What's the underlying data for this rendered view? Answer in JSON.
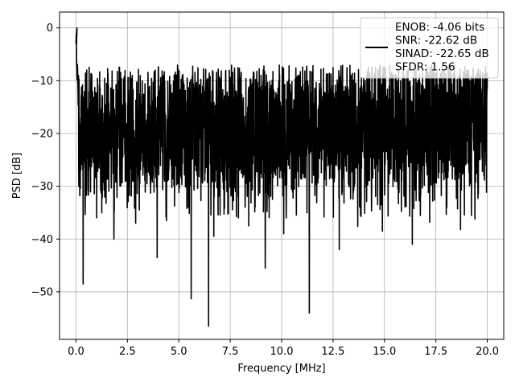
{
  "chart_data": {
    "type": "line",
    "xlabel": "Frequency [MHz]",
    "ylabel": "PSD [dB]",
    "xlim": [
      -0.8,
      20.8
    ],
    "ylim": [
      -59,
      3
    ],
    "x_ticks": [
      0.0,
      2.5,
      5.0,
      7.5,
      10.0,
      12.5,
      15.0,
      17.5,
      20.0
    ],
    "x_tick_labels": [
      "0.0",
      "2.5",
      "5.0",
      "7.5",
      "10.0",
      "12.5",
      "15.0",
      "17.5",
      "20.0"
    ],
    "y_ticks": [
      0,
      -10,
      -20,
      -30,
      -40,
      -50
    ],
    "y_tick_labels": [
      "0",
      "−10",
      "−20",
      "−30",
      "−40",
      "−50"
    ],
    "grid": true,
    "legend_position": "top-right",
    "legend_lines": [
      "ENOB: -4.06 bits",
      "SNR: -22.62 dB",
      "SINAD: -22.65 dB",
      "SFDR: 1.56"
    ],
    "series": [
      {
        "color": "#000000",
        "x_start": 0.0,
        "x_end": 20.0,
        "peak": {
          "x": 0.05,
          "y": 0.0
        },
        "noise_band": {
          "typical_low": -30,
          "typical_high": -10,
          "upper_extreme": -7
        },
        "deep_dips": [
          {
            "x": 0.35,
            "y": -48.5
          },
          {
            "x": 3.95,
            "y": -43.5
          },
          {
            "x": 5.6,
            "y": -51.3
          },
          {
            "x": 6.45,
            "y": -56.5
          },
          {
            "x": 9.2,
            "y": -45.5
          },
          {
            "x": 11.35,
            "y": -54.0
          },
          {
            "x": 12.8,
            "y": -42.0
          },
          {
            "x": 16.35,
            "y": -41.0
          },
          {
            "x": 1.85,
            "y": -40.0
          },
          {
            "x": 6.7,
            "y": -39.5
          },
          {
            "x": 10.1,
            "y": -39.0
          },
          {
            "x": 14.9,
            "y": -38.5
          },
          {
            "x": 18.7,
            "y": -38.2
          },
          {
            "x": 8.4,
            "y": -37.5
          },
          {
            "x": 2.9,
            "y": -37.0
          },
          {
            "x": 13.7,
            "y": -37.6
          },
          {
            "x": 4.4,
            "y": -36.5
          },
          {
            "x": 17.2,
            "y": -36.8
          },
          {
            "x": 7.9,
            "y": -36.0
          },
          {
            "x": 19.4,
            "y": -36.2
          }
        ]
      }
    ]
  }
}
